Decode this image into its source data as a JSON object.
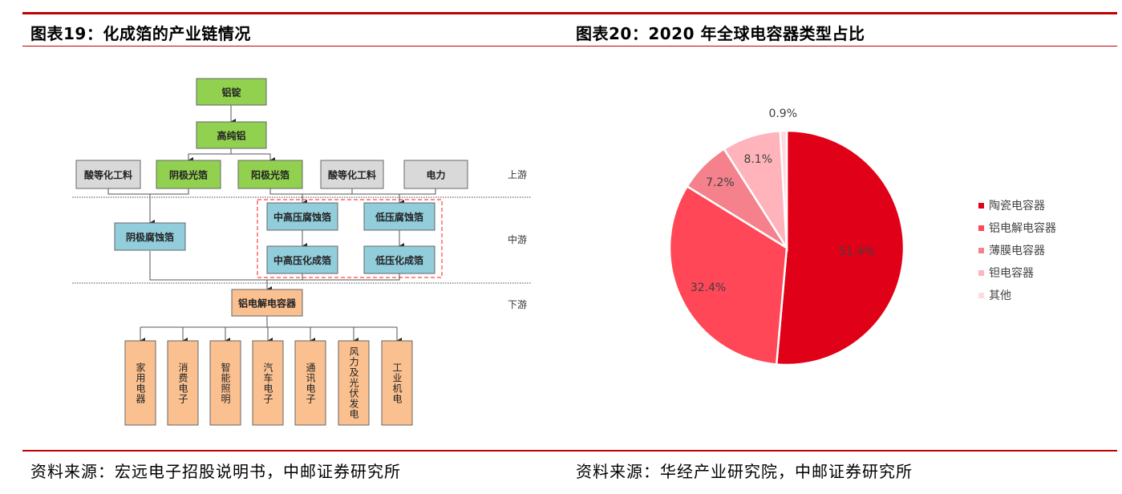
{
  "left": {
    "title": "图表19：化成箔的产业链情况",
    "source": "资料来源：宏远电子招股说明书，中邮证券研究所",
    "diagram": {
      "stages": [
        "上游",
        "中游",
        "下游"
      ],
      "top_nodes": [
        "铝锭",
        "高纯铝"
      ],
      "upstream": [
        "酸等化工料",
        "阴极光箔",
        "阳极光箔",
        "酸等化工料",
        "电力"
      ],
      "midstream": [
        "阴极腐蚀箔",
        "中高压腐蚀箔",
        "低压腐蚀箔",
        "中高压化成箔",
        "低压化成箔"
      ],
      "product": "铝电解电容器",
      "applications": [
        "家用电器",
        "消费电子",
        "智能照明",
        "汽车电子",
        "通讯电子",
        "风力及光伏发电",
        "工业机电"
      ],
      "colors": {
        "green": "#92d050",
        "grey": "#d9d9d9",
        "blue": "#92cddc",
        "peach": "#fac090",
        "dashed": "#ff6666"
      }
    }
  },
  "right": {
    "title": "图表20：2020 年全球电容器类型占比",
    "source": "资料来源：华经产业研究院，中邮证券研究所"
  },
  "chart_data": {
    "type": "pie",
    "title": "",
    "categories": [
      "陶瓷电容器",
      "铝电解电容器",
      "薄膜电容器",
      "钽电容器",
      "其他"
    ],
    "values": [
      51.4,
      32.4,
      7.2,
      8.1,
      0.9
    ],
    "labels": [
      "51.4%",
      "32.4%",
      "7.2%",
      "8.1%",
      "0.9%"
    ],
    "colors": [
      "#e00018",
      "#ff4757",
      "#f4818c",
      "#ffb3ba",
      "#ffd9dc"
    ],
    "start": "top",
    "direction": "clockwise",
    "legend_position": "right"
  }
}
